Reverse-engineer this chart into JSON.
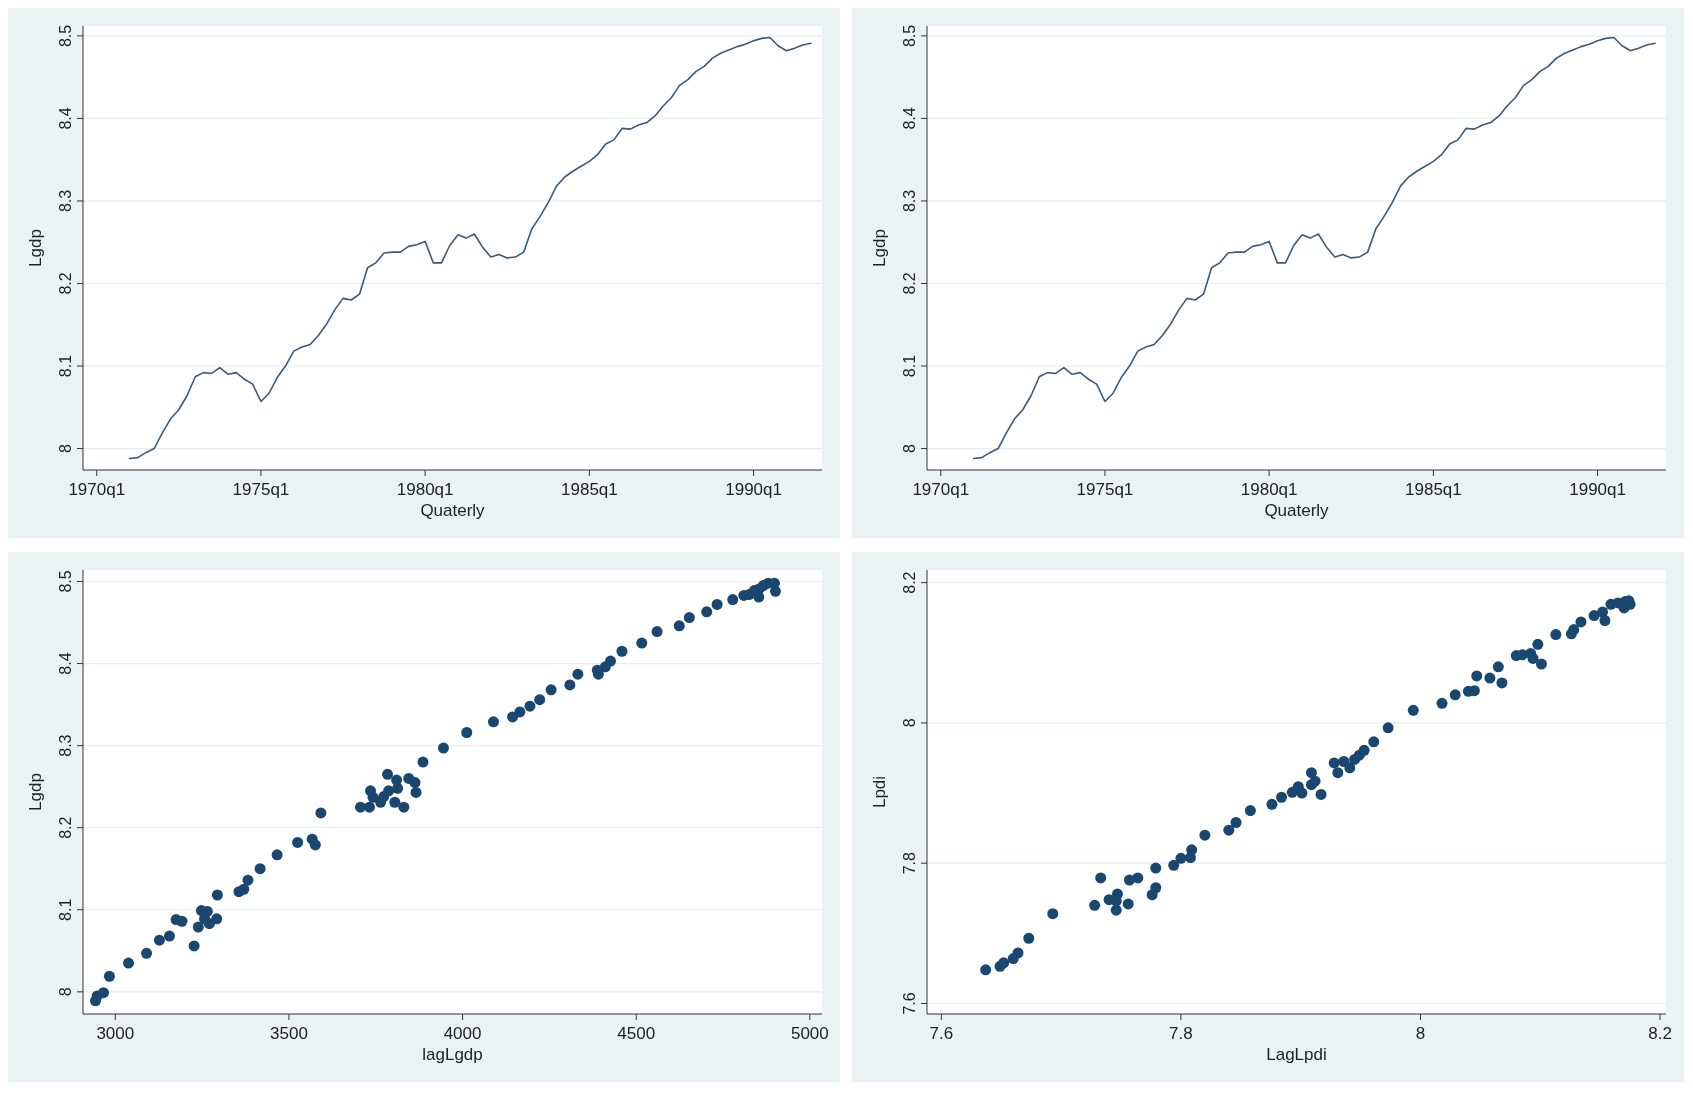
{
  "chart_data": [
    {
      "type": "line",
      "xlabel": "Quaterly",
      "ylabel": "Lgdp",
      "color": "#3e5a78",
      "grid": "y",
      "xlim": [
        "1969-08",
        "1992-02"
      ],
      "ylim": [
        7.974,
        8.512
      ],
      "xticks": [
        {
          "value": "1970-01",
          "label": "1970q1"
        },
        {
          "value": "1975-01",
          "label": "1975q1"
        },
        {
          "value": "1980-01",
          "label": "1980q1"
        },
        {
          "value": "1985-01",
          "label": "1985q1"
        },
        {
          "value": "1990-01",
          "label": "1990q1"
        }
      ],
      "yticks": [
        8,
        8.1,
        8.2,
        8.3,
        8.4,
        8.5
      ],
      "x": [
        "1971-01",
        "1971-04",
        "1971-07",
        "1971-10",
        "1972-01",
        "1972-04",
        "1972-07",
        "1972-10",
        "1973-01",
        "1973-04",
        "1973-07",
        "1973-10",
        "1974-01",
        "1974-04",
        "1974-07",
        "1974-10",
        "1975-01",
        "1975-04",
        "1975-07",
        "1975-10",
        "1976-01",
        "1976-04",
        "1976-07",
        "1976-10",
        "1977-01",
        "1977-04",
        "1977-07",
        "1977-10",
        "1978-01",
        "1978-04",
        "1978-07",
        "1978-10",
        "1979-01",
        "1979-04",
        "1979-07",
        "1979-10",
        "1980-01",
        "1980-04",
        "1980-07",
        "1980-10",
        "1981-01",
        "1981-04",
        "1981-07",
        "1981-10",
        "1982-01",
        "1982-04",
        "1982-07",
        "1982-10",
        "1983-01",
        "1983-04",
        "1983-07",
        "1983-10",
        "1984-01",
        "1984-04",
        "1984-07",
        "1984-10",
        "1985-01",
        "1985-04",
        "1985-07",
        "1985-10",
        "1986-01",
        "1986-04",
        "1986-07",
        "1986-10",
        "1987-01",
        "1987-04",
        "1987-07",
        "1987-10",
        "1988-01",
        "1988-04",
        "1988-07",
        "1988-10",
        "1989-01",
        "1989-04",
        "1989-07",
        "1989-10",
        "1990-01",
        "1990-04",
        "1990-07",
        "1990-10",
        "1991-01",
        "1991-04",
        "1991-07",
        "1991-10"
      ],
      "values": [
        7.988,
        7.989,
        7.995,
        8.0,
        8.019,
        8.036,
        8.047,
        8.064,
        8.087,
        8.092,
        8.091,
        8.098,
        8.09,
        8.092,
        8.084,
        8.078,
        8.057,
        8.067,
        8.086,
        8.1,
        8.118,
        8.123,
        8.126,
        8.137,
        8.151,
        8.168,
        8.182,
        8.18,
        8.187,
        8.219,
        8.225,
        8.237,
        8.238,
        8.238,
        8.245,
        8.247,
        8.251,
        8.225,
        8.225,
        8.246,
        8.259,
        8.255,
        8.26,
        8.244,
        8.232,
        8.235,
        8.231,
        8.232,
        8.238,
        8.266,
        8.281,
        8.298,
        8.318,
        8.329,
        8.336,
        8.342,
        8.348,
        8.356,
        8.369,
        8.374,
        8.388,
        8.387,
        8.392,
        8.395,
        8.403,
        8.415,
        8.425,
        8.44,
        8.447,
        8.457,
        8.463,
        8.473,
        8.479,
        8.483,
        8.487,
        8.49,
        8.494,
        8.497,
        8.498,
        8.488,
        8.482,
        8.485,
        8.489,
        8.491
      ]
    },
    {
      "type": "line",
      "xlabel": "Quaterly",
      "ylabel": "Lgdp",
      "color": "#3e5a78",
      "grid": "y",
      "xlim": [
        "1969-08",
        "1992-02"
      ],
      "ylim": [
        7.974,
        8.512
      ],
      "xticks": [
        {
          "value": "1970-01",
          "label": "1970q1"
        },
        {
          "value": "1975-01",
          "label": "1975q1"
        },
        {
          "value": "1980-01",
          "label": "1980q1"
        },
        {
          "value": "1985-01",
          "label": "1985q1"
        },
        {
          "value": "1990-01",
          "label": "1990q1"
        }
      ],
      "yticks": [
        8,
        8.1,
        8.2,
        8.3,
        8.4,
        8.5
      ],
      "x": [
        "1971-01",
        "1971-04",
        "1971-07",
        "1971-10",
        "1972-01",
        "1972-04",
        "1972-07",
        "1972-10",
        "1973-01",
        "1973-04",
        "1973-07",
        "1973-10",
        "1974-01",
        "1974-04",
        "1974-07",
        "1974-10",
        "1975-01",
        "1975-04",
        "1975-07",
        "1975-10",
        "1976-01",
        "1976-04",
        "1976-07",
        "1976-10",
        "1977-01",
        "1977-04",
        "1977-07",
        "1977-10",
        "1978-01",
        "1978-04",
        "1978-07",
        "1978-10",
        "1979-01",
        "1979-04",
        "1979-07",
        "1979-10",
        "1980-01",
        "1980-04",
        "1980-07",
        "1980-10",
        "1981-01",
        "1981-04",
        "1981-07",
        "1981-10",
        "1982-01",
        "1982-04",
        "1982-07",
        "1982-10",
        "1983-01",
        "1983-04",
        "1983-07",
        "1983-10",
        "1984-01",
        "1984-04",
        "1984-07",
        "1984-10",
        "1985-01",
        "1985-04",
        "1985-07",
        "1985-10",
        "1986-01",
        "1986-04",
        "1986-07",
        "1986-10",
        "1987-01",
        "1987-04",
        "1987-07",
        "1987-10",
        "1988-01",
        "1988-04",
        "1988-07",
        "1988-10",
        "1989-01",
        "1989-04",
        "1989-07",
        "1989-10",
        "1990-01",
        "1990-04",
        "1990-07",
        "1990-10",
        "1991-01",
        "1991-04",
        "1991-07",
        "1991-10"
      ],
      "values": [
        7.988,
        7.989,
        7.995,
        8.0,
        8.019,
        8.036,
        8.047,
        8.064,
        8.087,
        8.092,
        8.091,
        8.098,
        8.09,
        8.092,
        8.084,
        8.078,
        8.057,
        8.067,
        8.086,
        8.1,
        8.118,
        8.123,
        8.126,
        8.137,
        8.151,
        8.168,
        8.182,
        8.18,
        8.187,
        8.219,
        8.225,
        8.237,
        8.238,
        8.238,
        8.245,
        8.247,
        8.251,
        8.225,
        8.225,
        8.246,
        8.259,
        8.255,
        8.26,
        8.244,
        8.232,
        8.235,
        8.231,
        8.232,
        8.238,
        8.266,
        8.281,
        8.298,
        8.318,
        8.329,
        8.336,
        8.342,
        8.348,
        8.356,
        8.369,
        8.374,
        8.388,
        8.387,
        8.392,
        8.395,
        8.403,
        8.415,
        8.425,
        8.44,
        8.447,
        8.457,
        8.463,
        8.473,
        8.479,
        8.483,
        8.487,
        8.49,
        8.494,
        8.497,
        8.498,
        8.488,
        8.482,
        8.485,
        8.489,
        8.491
      ]
    },
    {
      "type": "scatter",
      "xlabel": "lagLgdp",
      "ylabel": "Lgdp",
      "color": "#1a476f",
      "marker": "circle",
      "grid": "y",
      "xlim": [
        2907,
        5035
      ],
      "ylim": [
        7.973,
        8.514
      ],
      "xticks": [
        3000,
        3500,
        4000,
        4500,
        5000
      ],
      "yticks": [
        8,
        8.1,
        8.2,
        8.3,
        8.4,
        8.5
      ],
      "x": [
        2943,
        2948,
        2966,
        2983,
        3038,
        3090,
        3127,
        3156,
        3175,
        3192,
        3227,
        3239,
        3248,
        3265,
        3257,
        3271,
        3292,
        3294,
        3356,
        3370,
        3382,
        3417,
        3466,
        3525,
        3567,
        3576,
        3592,
        3706,
        3732,
        3735,
        3742,
        3764,
        3773,
        3784,
        3787,
        3805,
        3810,
        3813,
        3831,
        3845,
        3863,
        3866,
        3886,
        3945,
        4012,
        4089,
        4144,
        4165,
        4194,
        4222,
        4255,
        4309,
        4332,
        4388,
        4391,
        4411,
        4426,
        4459,
        4516,
        4560,
        4624,
        4653,
        4703,
        4733,
        4778,
        4810,
        4825,
        4840,
        4854,
        4853,
        4866,
        4880,
        4898,
        4901
      ],
      "values": [
        7.989,
        7.995,
        7.999,
        8.019,
        8.035,
        8.047,
        8.063,
        8.068,
        8.088,
        8.086,
        8.056,
        8.079,
        8.099,
        8.098,
        8.089,
        8.083,
        8.089,
        8.118,
        8.122,
        8.125,
        8.136,
        8.15,
        8.167,
        8.182,
        8.186,
        8.179,
        8.218,
        8.225,
        8.225,
        8.245,
        8.237,
        8.231,
        8.238,
        8.265,
        8.245,
        8.231,
        8.258,
        8.248,
        8.225,
        8.26,
        8.255,
        8.243,
        8.28,
        8.297,
        8.316,
        8.329,
        8.335,
        8.341,
        8.348,
        8.356,
        8.368,
        8.374,
        8.387,
        8.392,
        8.387,
        8.396,
        8.403,
        8.415,
        8.425,
        8.439,
        8.446,
        8.456,
        8.463,
        8.472,
        8.478,
        8.483,
        8.484,
        8.489,
        8.491,
        8.481,
        8.495,
        8.498,
        8.498,
        8.488
      ]
    },
    {
      "type": "scatter",
      "xlabel": "LagLpdi",
      "ylabel": "Lpdi",
      "color": "#1a476f",
      "marker": "circle",
      "grid": "y",
      "xlim": [
        7.588,
        8.205
      ],
      "ylim": [
        7.585,
        8.218
      ],
      "xticks": [
        7.6,
        7.8,
        8,
        8.2
      ],
      "yticks": [
        7.6,
        7.8,
        8,
        8.2
      ],
      "x": [
        7.637,
        7.649,
        7.652,
        7.66,
        7.664,
        7.673,
        7.693,
        7.728,
        7.733,
        7.74,
        7.747,
        7.746,
        7.746,
        7.756,
        7.757,
        7.764,
        7.776,
        7.779,
        7.779,
        7.794,
        7.8,
        7.808,
        7.809,
        7.82,
        7.84,
        7.846,
        7.858,
        7.876,
        7.884,
        7.893,
        7.898,
        7.901,
        7.909,
        7.909,
        7.912,
        7.917,
        7.928,
        7.931,
        7.936,
        7.941,
        7.945,
        7.949,
        7.953,
        7.961,
        7.973,
        7.994,
        8.018,
        8.029,
        8.04,
        8.045,
        8.047,
        8.058,
        8.065,
        8.068,
        8.08,
        8.085,
        8.092,
        8.094,
        8.098,
        8.101,
        8.113,
        8.126,
        8.128,
        8.134,
        8.145,
        8.152,
        8.154,
        8.159,
        8.165,
        8.17,
        8.171,
        8.174,
        8.175
      ],
      "values": [
        7.648,
        7.653,
        7.658,
        7.664,
        7.672,
        7.693,
        7.728,
        7.74,
        7.779,
        7.748,
        7.756,
        7.733,
        7.746,
        7.742,
        7.776,
        7.779,
        7.755,
        7.765,
        7.793,
        7.797,
        7.807,
        7.808,
        7.819,
        7.84,
        7.847,
        7.858,
        7.875,
        7.884,
        7.894,
        7.901,
        7.909,
        7.9,
        7.912,
        7.929,
        7.917,
        7.898,
        7.943,
        7.929,
        7.945,
        7.936,
        7.948,
        7.954,
        7.961,
        7.973,
        7.993,
        8.018,
        8.028,
        8.04,
        8.045,
        8.046,
        8.067,
        8.064,
        8.08,
        8.057,
        8.096,
        8.097,
        8.099,
        8.092,
        8.112,
        8.084,
        8.126,
        8.127,
        8.133,
        8.144,
        8.153,
        8.158,
        8.146,
        8.169,
        8.171,
        8.164,
        8.173,
        8.174,
        8.169
      ]
    }
  ]
}
